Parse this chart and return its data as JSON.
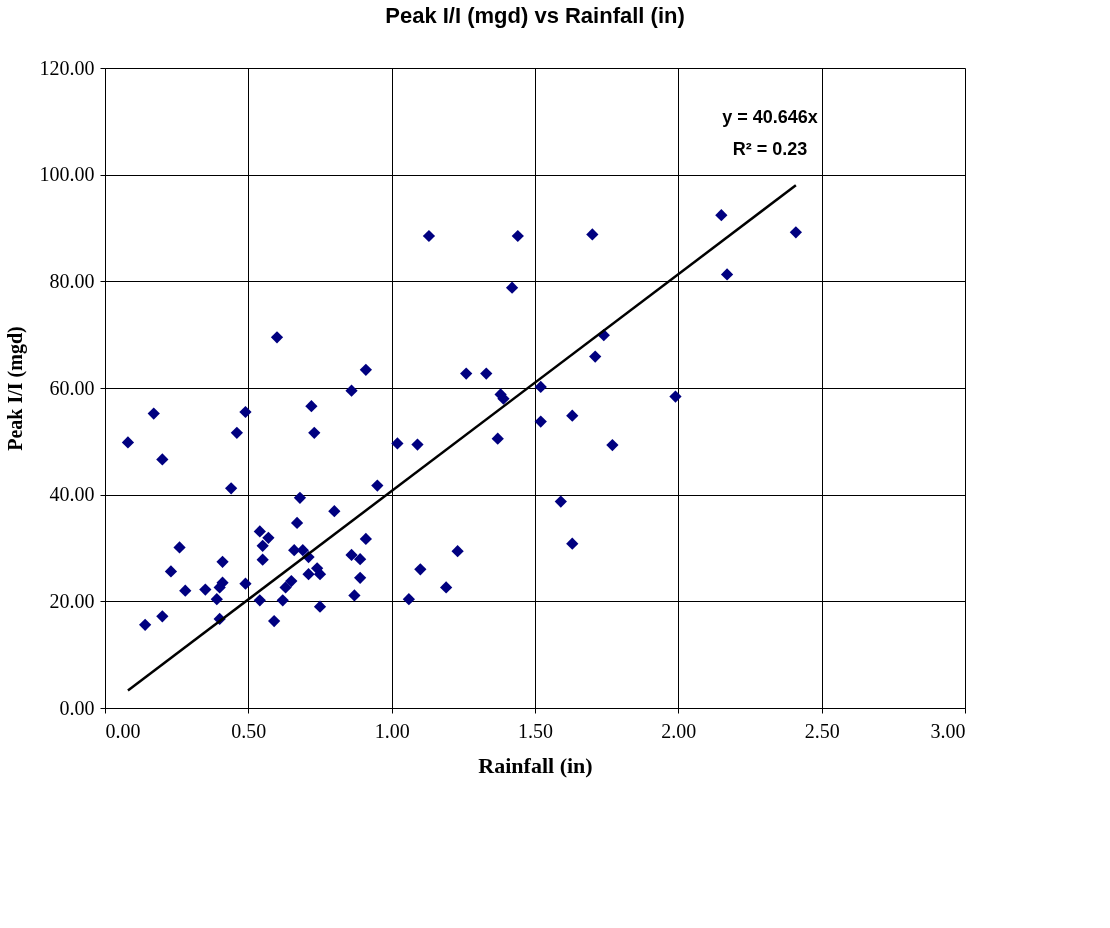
{
  "chart_data": {
    "type": "scatter",
    "title": "Peak I/I (mgd) vs Rainfall (in)",
    "xlabel": "Rainfall (in)",
    "ylabel": "Peak I/I (mgd)",
    "xlim": [
      0,
      3
    ],
    "ylim": [
      0,
      120
    ],
    "xticks": [
      {
        "value": 0,
        "label": "0.00"
      },
      {
        "value": 0.5,
        "label": "0.50"
      },
      {
        "value": 1,
        "label": "1.00"
      },
      {
        "value": 1.5,
        "label": "1.50"
      },
      {
        "value": 2,
        "label": "2.00"
      },
      {
        "value": 2.5,
        "label": "2.50"
      },
      {
        "value": 3,
        "label": "3.00"
      }
    ],
    "yticks": [
      {
        "value": 0,
        "label": "0.00"
      },
      {
        "value": 20,
        "label": "20.00"
      },
      {
        "value": 40,
        "label": "40.00"
      },
      {
        "value": 60,
        "label": "60.00"
      },
      {
        "value": 80,
        "label": "80.00"
      },
      {
        "value": 100,
        "label": "100.00"
      },
      {
        "value": 120,
        "label": "120.00"
      }
    ],
    "grid": true,
    "series": [
      {
        "marker": "diamond",
        "color": "#000080",
        "x": [
          0.08,
          0.17,
          0.2,
          0.44,
          0.46,
          0.49,
          0.6,
          0.72,
          0.73,
          0.86,
          0.91,
          0.95,
          1.02,
          1.09,
          1.13,
          1.44,
          1.42,
          1.26,
          1.33,
          1.38,
          1.39,
          1.37,
          1.52,
          1.52,
          1.63,
          1.7,
          1.74,
          1.71,
          1.77,
          1.59,
          1.63,
          1.99,
          2.15,
          2.17,
          2.41,
          0.14,
          0.2,
          0.23,
          0.26,
          0.28,
          0.35,
          0.39,
          0.4,
          0.41,
          0.41,
          0.4,
          0.49,
          0.54,
          0.54,
          0.55,
          0.55,
          0.57,
          0.59,
          0.62,
          0.63,
          0.65,
          0.66,
          0.67,
          0.68,
          0.69,
          0.71,
          0.71,
          0.74,
          0.75,
          0.75,
          0.8,
          0.86,
          0.87,
          0.89,
          0.89,
          0.91,
          1.06,
          1.1,
          1.19,
          1.23
        ],
        "values": [
          49.8,
          55.2,
          46.6,
          41.2,
          51.6,
          55.5,
          69.5,
          56.6,
          51.6,
          59.5,
          63.4,
          41.7,
          49.6,
          49.4,
          88.5,
          88.5,
          78.8,
          62.7,
          62.7,
          58.8,
          58.0,
          50.5,
          60.2,
          53.7,
          54.8,
          88.8,
          69.9,
          65.9,
          49.3,
          38.7,
          30.8,
          58.4,
          92.4,
          81.3,
          89.2,
          15.6,
          17.2,
          25.6,
          30.1,
          22.0,
          22.2,
          20.4,
          16.7,
          23.5,
          27.4,
          22.6,
          23.3,
          20.2,
          33.1,
          30.4,
          27.8,
          31.9,
          16.3,
          20.2,
          22.6,
          23.8,
          29.6,
          34.7,
          39.4,
          29.6,
          28.3,
          25.1,
          26.2,
          25.1,
          19.0,
          36.9,
          28.7,
          21.1,
          27.9,
          24.4,
          31.7,
          20.4,
          26.0,
          22.6,
          29.4
        ]
      },
      {
        "type": "line",
        "marker": "none",
        "color": "#000000",
        "x": [
          0.08,
          2.41
        ],
        "values": [
          3.3,
          98.0
        ]
      }
    ],
    "annotations": [
      "y = 40.646x",
      "R² = 0.23"
    ]
  }
}
